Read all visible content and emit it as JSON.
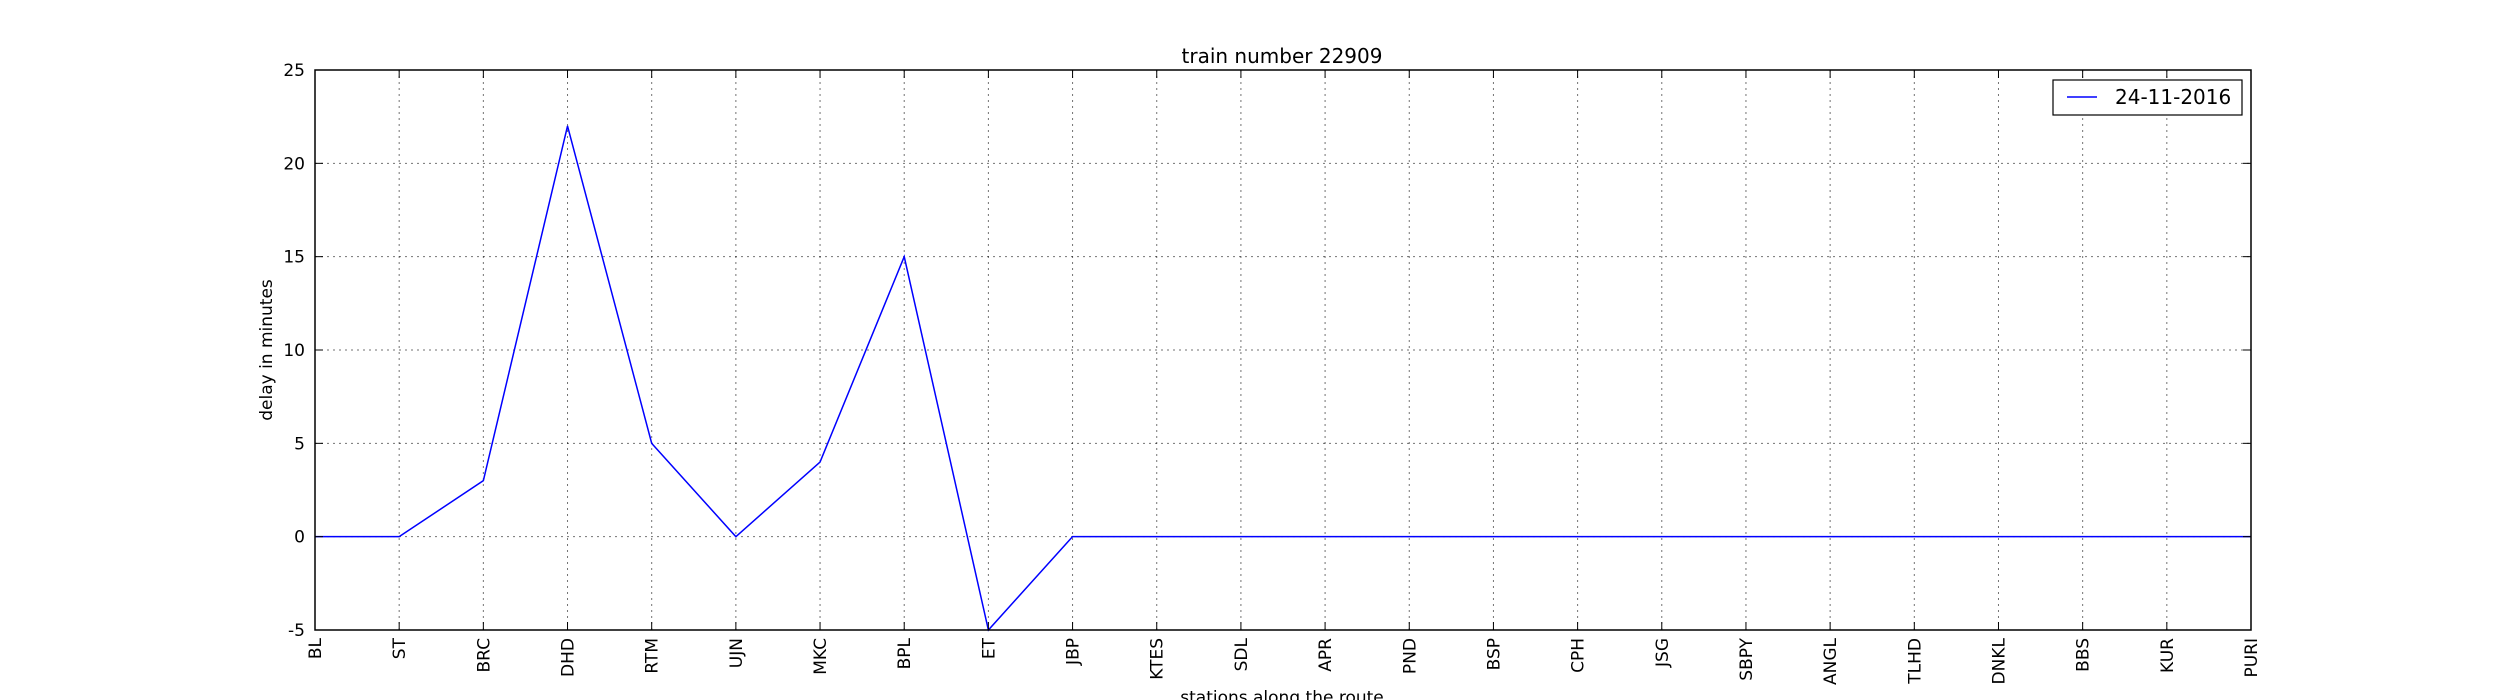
{
  "chart_data": {
    "type": "line",
    "title": "train number 22909",
    "xlabel": "stations along the route",
    "ylabel": "delay in minutes",
    "categories": [
      "BL",
      "ST",
      "BRC",
      "DHD",
      "RTM",
      "UJN",
      "MKC",
      "BPL",
      "ET",
      "JBP",
      "KTES",
      "SDL",
      "APR",
      "PND",
      "BSP",
      "CPH",
      "JSG",
      "SBPY",
      "ANGL",
      "TLHD",
      "DNKL",
      "BBS",
      "KUR",
      "PURI"
    ],
    "series": [
      {
        "name": "24-11-2016",
        "color": "#0000ff",
        "values": [
          0,
          0,
          3,
          22,
          5,
          0,
          4,
          15,
          -5,
          0,
          0,
          0,
          0,
          0,
          0,
          0,
          0,
          0,
          0,
          0,
          0,
          0,
          0,
          0
        ]
      }
    ],
    "ylim": [
      -5,
      25
    ],
    "yticks": [
      -5,
      0,
      5,
      10,
      15,
      20,
      25
    ],
    "grid": true,
    "legend_position": "top-right"
  }
}
